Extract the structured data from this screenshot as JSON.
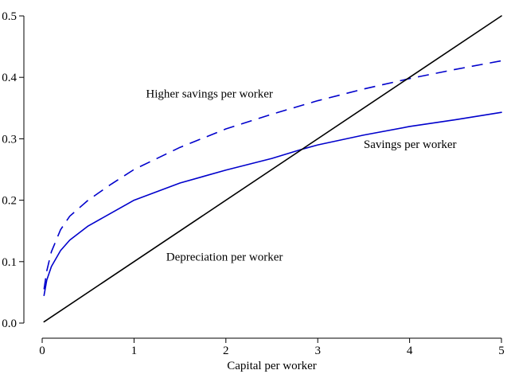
{
  "chart_data": {
    "type": "line",
    "title": "",
    "xlabel": "Capital per worker",
    "ylabel": "",
    "xlim": [
      0,
      5
    ],
    "ylim": [
      0,
      0.5
    ],
    "xticks": [
      0,
      1,
      2,
      3,
      4,
      5
    ],
    "xtick_labels": [
      "0",
      "1",
      "2",
      "3",
      "4",
      "5"
    ],
    "yticks": [
      0,
      0.1,
      0.2,
      0.3,
      0.4,
      0.5
    ],
    "ytick_labels": [
      "0.0",
      "0.1",
      "0.2",
      "0.3",
      "0.4",
      "0.5"
    ],
    "grid": false,
    "legend": "none",
    "series": [
      {
        "name": "Savings per worker",
        "color": "#0000cc",
        "style": "solid",
        "x": [
          0.02,
          0.05,
          0.1,
          0.2,
          0.3,
          0.5,
          0.75,
          1,
          1.5,
          2,
          2.5,
          2.83,
          3,
          3.5,
          4,
          4.5,
          5
        ],
        "y": [
          0.045,
          0.07,
          0.092,
          0.118,
          0.135,
          0.158,
          0.179,
          0.2,
          0.228,
          0.249,
          0.268,
          0.283,
          0.29,
          0.306,
          0.32,
          0.331,
          0.343
        ]
      },
      {
        "name": "Higher savings per worker",
        "color": "#0000cc",
        "style": "dashed",
        "x": [
          0.02,
          0.05,
          0.1,
          0.2,
          0.3,
          0.5,
          0.75,
          1,
          1.5,
          2,
          2.5,
          3,
          3.5,
          4,
          4.5,
          5
        ],
        "y": [
          0.055,
          0.085,
          0.116,
          0.152,
          0.174,
          0.2,
          0.226,
          0.25,
          0.286,
          0.316,
          0.34,
          0.362,
          0.381,
          0.398,
          0.413,
          0.427
        ]
      },
      {
        "name": "Depreciation per worker",
        "color": "#000000",
        "style": "solid",
        "x": [
          0.02,
          5
        ],
        "y": [
          0.002,
          0.5
        ]
      }
    ],
    "annotations": [
      {
        "text": "Higher savings per worker",
        "x": 1.13,
        "y": 0.367
      },
      {
        "text": "Savings per worker",
        "x": 3.5,
        "y": 0.285
      },
      {
        "text": "Depreciation per worker",
        "x": 1.35,
        "y": 0.102
      }
    ]
  }
}
